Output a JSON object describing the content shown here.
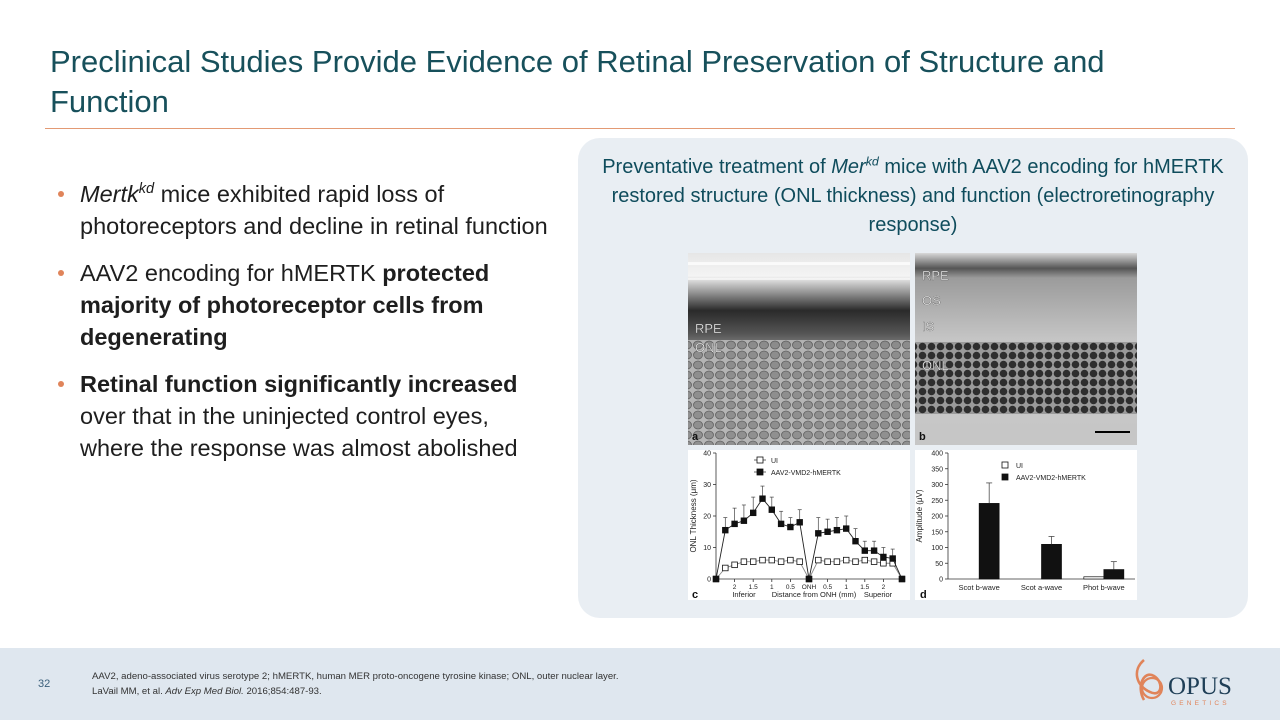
{
  "header": {
    "title": "Preclinical Studies Provide Evidence of Retinal Preservation of Structure and Function"
  },
  "bullets": [
    [
      {
        "text": "Mertk",
        "style": "italic"
      },
      {
        "text": "kd",
        "style": "italic-sup"
      },
      {
        "text": " mice exhibited rapid loss of photoreceptors and decline in retinal function"
      }
    ],
    [
      {
        "text": "AAV2 encoding for hMERTK "
      },
      {
        "text": "protected majority of photoreceptor cells from degenerating",
        "style": "bold"
      }
    ],
    [
      {
        "text": "Retinal function significantly increased",
        "style": "bold"
      },
      {
        "text": " over that in the uninjected control eyes, where the response was almost abolished"
      }
    ]
  ],
  "panel": {
    "caption": [
      {
        "text": "Preventative treatment of "
      },
      {
        "text": "Mer",
        "style": "italic"
      },
      {
        "text": "kd",
        "style": "italic-sup"
      },
      {
        "text": " mice with AAV2 encoding for hMERTK restored structure (ONL thickness) and function (electroretinography response)"
      }
    ],
    "images": [
      {
        "letter": "a",
        "labels": [
          "RPE",
          "ONL"
        ]
      },
      {
        "letter": "b",
        "labels": [
          "RPE",
          "OS",
          "IS",
          "ONL"
        ]
      }
    ]
  },
  "chart_data": [
    {
      "type": "line",
      "panel": "c",
      "categories": [
        null,
        null,
        "2",
        null,
        "1.5",
        null,
        "1",
        null,
        "0.5",
        null,
        "ONH",
        null,
        "0.5",
        null,
        "1",
        null,
        "1.5",
        null,
        "2",
        null,
        null
      ],
      "xlabel": "Distance from ONH (mm)",
      "annotations": [
        "Inferior",
        "Superior"
      ],
      "ylabel": "ONL Thickness (μm)",
      "ylim": [
        0,
        40
      ],
      "yticks": [
        0,
        10,
        20,
        30,
        40
      ],
      "series": [
        {
          "name": "UI",
          "color": "#ffffff",
          "values": [
            0,
            3.5,
            4.5,
            5.5,
            5.5,
            6,
            6,
            5.5,
            6,
            5.5,
            0,
            6,
            5.5,
            5.5,
            6,
            5.5,
            6,
            5.5,
            5,
            5,
            0
          ]
        },
        {
          "name": "AAV2-VMD2-hMERTK",
          "color": "#111111",
          "values": [
            0,
            15.5,
            17.5,
            18.5,
            21,
            25.5,
            22,
            17.5,
            16.5,
            18,
            0,
            14.5,
            15,
            15.5,
            16,
            12,
            9,
            9,
            7,
            6.5,
            0
          ],
          "errors": [
            0,
            4,
            5,
            5,
            5,
            4,
            4,
            4,
            3,
            4,
            0,
            5,
            4,
            4,
            4,
            4,
            3,
            3,
            3,
            3,
            0
          ]
        }
      ]
    },
    {
      "type": "bar",
      "panel": "d",
      "categories": [
        "Scot b-wave",
        "Scot a-wave",
        "Phot b-wave"
      ],
      "ylabel": "Amplitude (μV)",
      "ylim": [
        0,
        400
      ],
      "yticks": [
        0,
        50,
        100,
        150,
        200,
        250,
        300,
        350,
        400
      ],
      "series": [
        {
          "name": "UI",
          "color": "#ffffff",
          "values": [
            0,
            0,
            7
          ]
        },
        {
          "name": "AAV2-VMD2-hMERTK",
          "color": "#111111",
          "values": [
            240,
            110,
            30
          ],
          "errors": [
            65,
            25,
            25
          ]
        }
      ]
    }
  ],
  "footer": {
    "page_number": "32",
    "footnotes": [
      [
        {
          "text": "AAV2, adeno-associated virus serotype 2; hMERTK, human MER proto-oncogene tyrosine kinase; ONL, outer nuclear layer."
        }
      ],
      [
        {
          "text": "LaVail MM, et al. "
        },
        {
          "text": "Adv Exp Med Biol.",
          "style": "italic"
        },
        {
          "text": " 2016;854:487-93."
        }
      ]
    ],
    "logo": {
      "name": "OPUS",
      "sub": "GENETICS"
    }
  }
}
